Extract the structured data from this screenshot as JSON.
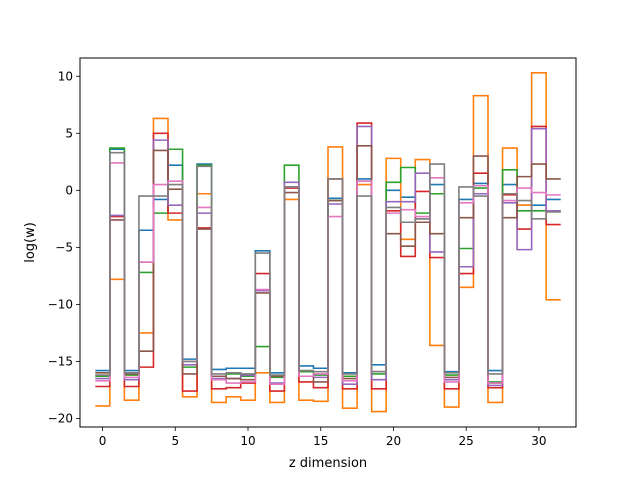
{
  "chart_data": {
    "type": "step",
    "xlabel": "z dimension",
    "ylabel": "log(w)",
    "xlim": [
      -1.55,
      32.55
    ],
    "ylim": [
      -20.75,
      11.6
    ],
    "xticks": [
      0,
      5,
      10,
      15,
      20,
      25,
      30
    ],
    "yticks": [
      -20,
      -15,
      -10,
      -5,
      0,
      5,
      10
    ],
    "grid": false,
    "x": [
      0,
      1,
      2,
      3,
      4,
      5,
      6,
      7,
      8,
      9,
      10,
      11,
      12,
      13,
      14,
      15,
      16,
      17,
      18,
      19,
      20,
      21,
      22,
      23,
      24,
      25,
      26,
      27,
      28,
      29,
      30,
      31
    ],
    "series": [
      {
        "color": "#1f77b4",
        "values": [
          -15.8,
          3.6,
          -15.8,
          -3.5,
          -0.8,
          2.2,
          -14.8,
          2.3,
          -15.7,
          -15.6,
          -15.6,
          -5.3,
          -16.0,
          0.3,
          -15.4,
          -15.6,
          -0.7,
          -16.0,
          1.0,
          -15.3,
          0.0,
          -0.6,
          -2.5,
          0.5,
          -15.9,
          -0.8,
          0.6,
          -15.8,
          0.5,
          -1.3,
          -1.3,
          -0.8
        ]
      },
      {
        "color": "#ff7f0e",
        "values": [
          -18.9,
          -7.8,
          -18.4,
          -12.5,
          6.3,
          -2.6,
          -18.1,
          -0.3,
          -18.6,
          -18.1,
          -18.4,
          -16.0,
          -18.6,
          -0.8,
          -18.4,
          -18.5,
          3.8,
          -19.1,
          0.5,
          -19.4,
          2.8,
          -4.3,
          2.7,
          -13.6,
          -19.0,
          -8.5,
          8.3,
          -18.6,
          3.7,
          -1.3,
          10.3,
          -9.6
        ]
      },
      {
        "color": "#2ca02c",
        "values": [
          -16.3,
          3.7,
          -16.2,
          -7.2,
          -2.0,
          3.6,
          -15.5,
          2.2,
          -16.3,
          -16.1,
          -16.3,
          -13.7,
          -16.4,
          2.2,
          -15.9,
          -16.2,
          -0.9,
          -16.3,
          0.8,
          -16.1,
          0.7,
          2.0,
          -2.0,
          -0.3,
          -16.2,
          -5.1,
          0.2,
          -16.8,
          1.8,
          -1.8,
          -1.8,
          -1.8
        ]
      },
      {
        "color": "#d62728",
        "values": [
          -17.2,
          -2.3,
          -17.2,
          -15.5,
          5.0,
          -2.0,
          -17.6,
          -3.3,
          -17.4,
          -17.3,
          -16.9,
          -7.3,
          -17.6,
          0.2,
          -16.8,
          -17.3,
          1.0,
          -17.4,
          5.9,
          -17.4,
          -1.8,
          -5.8,
          -0.1,
          -5.9,
          -17.4,
          -7.3,
          1.5,
          -17.3,
          -0.4,
          -3.4,
          5.6,
          -3.0
        ]
      },
      {
        "color": "#9467bd",
        "values": [
          -16.5,
          -2.2,
          -16.6,
          -6.3,
          4.4,
          -1.3,
          -15.3,
          -2.0,
          -16.5,
          -16.5,
          -16.2,
          -8.8,
          -16.9,
          0.7,
          -16.3,
          -16.4,
          -1.2,
          -17.0,
          5.6,
          -16.6,
          -1.0,
          -1.0,
          1.5,
          -5.4,
          -16.6,
          -6.7,
          -0.3,
          -17.1,
          -1.1,
          -5.2,
          5.4,
          -1.8
        ]
      },
      {
        "color": "#8c564b",
        "values": [
          -16.0,
          -2.6,
          -16.1,
          -14.1,
          3.5,
          0.1,
          -16.1,
          -3.4,
          -16.3,
          -16.5,
          -16.6,
          -9.0,
          -16.3,
          -0.2,
          -16.3,
          -16.8,
          -0.9,
          -16.5,
          3.9,
          -15.9,
          -3.8,
          -4.9,
          -2.8,
          -3.8,
          -16.4,
          -2.4,
          3.0,
          -16.9,
          -2.4,
          1.2,
          2.3,
          1.0
        ]
      },
      {
        "color": "#e377c2",
        "values": [
          -16.7,
          2.4,
          -16.4,
          -6.3,
          0.5,
          0.8,
          -15.0,
          -1.5,
          -16.6,
          -16.9,
          -16.8,
          -8.7,
          -17.0,
          0.3,
          -16.3,
          -16.1,
          -2.3,
          -16.7,
          0.8,
          -15.9,
          -2.0,
          -1.7,
          -2.3,
          1.1,
          -16.8,
          -1.1,
          0.4,
          -16.9,
          -0.9,
          0.2,
          -0.2,
          -0.4
        ]
      },
      {
        "color": "#7f7f7f",
        "values": [
          -16.2,
          3.3,
          -16.0,
          -0.5,
          -0.5,
          0.5,
          -15.0,
          2.1,
          -16.1,
          -16.0,
          -16.1,
          -5.5,
          -16.2,
          0.3,
          -15.8,
          -15.9,
          1.0,
          -16.1,
          -0.5,
          -15.9,
          -1.5,
          -2.8,
          -2.5,
          2.3,
          -16.0,
          0.3,
          -0.5,
          -16.1,
          -0.3,
          -0.9,
          -2.5,
          -1.9
        ]
      }
    ]
  }
}
